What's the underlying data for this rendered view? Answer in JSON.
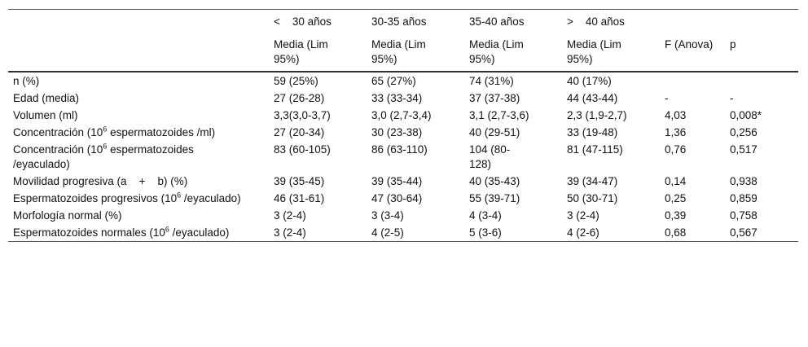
{
  "table": {
    "header": {
      "groups": [
        "<    30 años",
        "30-35 años",
        "35-40 años",
        ">    40 años"
      ],
      "subheaders": [
        "Media (Lim 95%)",
        "Media (Lim 95%)",
        "Media (Lim 95%)",
        "Media (Lim 95%)",
        "F (Anova)",
        "p"
      ]
    },
    "rows": [
      {
        "label": [
          "n (%)"
        ],
        "cells": [
          "59 (25%)",
          "65 (27%)",
          "74 (31%)",
          "40 (17%)"
        ]
      },
      {
        "label": [
          "Edad (media)"
        ],
        "cells": [
          "27 (26-28)",
          "33 (33-34)",
          "37 (37-38)",
          "44 (43-44)",
          "-",
          "-"
        ]
      },
      {
        "label": [
          "Volumen (ml)"
        ],
        "cells": [
          "3,3(3,0-3,7)",
          "3,0 (2,7-3,4)",
          "3,1 (2,7-3,6)",
          "2,3 (1,9-2,7)",
          "4,03",
          "0,008*"
        ]
      },
      {
        "label": [
          "Concentración (10",
          "6",
          " espermatozoides /ml)"
        ],
        "cells": [
          "27 (20-34)",
          "30 (23-38)",
          "40 (29-51)",
          "33 (19-48)",
          "1,36",
          "0,256"
        ]
      },
      {
        "label": [
          "Concentración (10",
          "6",
          " espermatozoides /eyaculado)"
        ],
        "cells": [
          "83 (60-105)",
          "86 (63-110)",
          "104 (80-128)",
          "81 (47-115)",
          "0,76",
          "0,517"
        ]
      },
      {
        "label": [
          "Movilidad progresiva (a    +    b) (%)"
        ],
        "cells": [
          "39 (35-45)",
          "39 (35-44)",
          "40 (35-43)",
          "39 (34-47)",
          "0,14",
          "0,938"
        ]
      },
      {
        "label": [
          "Espermatozoides progresivos (10",
          "6",
          " /eyaculado)"
        ],
        "cells": [
          "46 (31-61)",
          "47 (30-64)",
          "55 (39-71)",
          "50 (30-71)",
          "0,25",
          "0,859"
        ]
      },
      {
        "label": [
          "Morfología normal (%)"
        ],
        "cells": [
          "3 (2-4)",
          "3 (3-4)",
          "4 (3-4)",
          "3 (2-4)",
          "0,39",
          "0,758"
        ]
      },
      {
        "label": [
          "Espermatozoides normales (10",
          "6",
          " /eyaculado)"
        ],
        "cells": [
          "3 (2-4)",
          "4 (2-5)",
          "5 (3-6)",
          "4 (2-6)",
          "0,68",
          "0,567"
        ]
      }
    ]
  }
}
